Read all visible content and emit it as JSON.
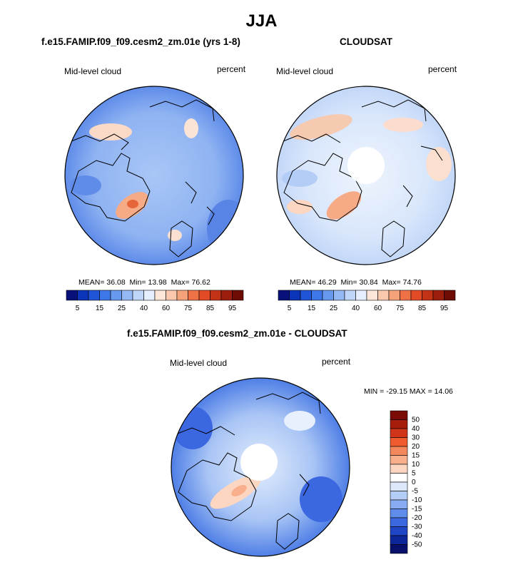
{
  "figure": {
    "title": "JJA"
  },
  "colors": {
    "land_outline": "#000000",
    "hole": "#ffffff"
  },
  "panels": [
    {
      "id": "model",
      "title": "f.e15.FAMIP.f09_f09.cesm2_zm.01e (yrs 1-8)",
      "left_label": "Mid-level cloud",
      "right_label": "percent",
      "stats": {
        "mean_label": "MEAN=",
        "mean": "36.08",
        "min_label": "Min=",
        "min": "13.98",
        "max_label": "Max=",
        "max": "76.62"
      },
      "colorbar_ticks": [
        "5",
        "15",
        "25",
        "40",
        "60",
        "75",
        "85",
        "95"
      ],
      "colorbar_colors": [
        "#08107a",
        "#0c34b8",
        "#1f55d6",
        "#3c78e8",
        "#6799ef",
        "#93b8f4",
        "#c0d6f9",
        "#e6effd",
        "#fde6d8",
        "#f9c8ad",
        "#f5a27b",
        "#ef7247",
        "#e24b25",
        "#c23214",
        "#9c1f0d",
        "#6e0b05"
      ]
    },
    {
      "id": "obs",
      "title": "CLOUDSAT",
      "left_label": "Mid-level cloud",
      "right_label": "percent",
      "stats": {
        "mean_label": "MEAN=",
        "mean": "46.29",
        "min_label": "Min=",
        "min": "30.84",
        "max_label": "Max=",
        "max": "74.76"
      },
      "colorbar_ticks": [
        "5",
        "15",
        "25",
        "40",
        "60",
        "75",
        "85",
        "95"
      ],
      "colorbar_colors": [
        "#08107a",
        "#0c34b8",
        "#1f55d6",
        "#3c78e8",
        "#6799ef",
        "#93b8f4",
        "#c0d6f9",
        "#e6effd",
        "#fde6d8",
        "#f9c8ad",
        "#f5a27b",
        "#ef7247",
        "#e24b25",
        "#c23214",
        "#9c1f0d",
        "#6e0b05"
      ]
    },
    {
      "id": "diff",
      "title": "f.e15.FAMIP.f09_f09.cesm2_zm.01e - CLOUDSAT",
      "left_label": "Mid-level cloud",
      "right_label": "percent",
      "stats_text": "MIN = -29.15 MAX =  14.06",
      "colorbar_ticks": [
        "50",
        "40",
        "30",
        "20",
        "15",
        "10",
        "5",
        "0",
        "-5",
        "-10",
        "-15",
        "-20",
        "-30",
        "-40",
        "-50"
      ],
      "colorbar_colors": [
        "#7a0a05",
        "#a61d0d",
        "#d0351a",
        "#ef5a2e",
        "#f5875c",
        "#f9ae8c",
        "#fcd6c0",
        "#ffffff",
        "#dde9fb",
        "#b4cdf6",
        "#88acf1",
        "#5f8bea",
        "#3b67e0",
        "#1f44c6",
        "#0d2699",
        "#07106a"
      ]
    }
  ]
}
